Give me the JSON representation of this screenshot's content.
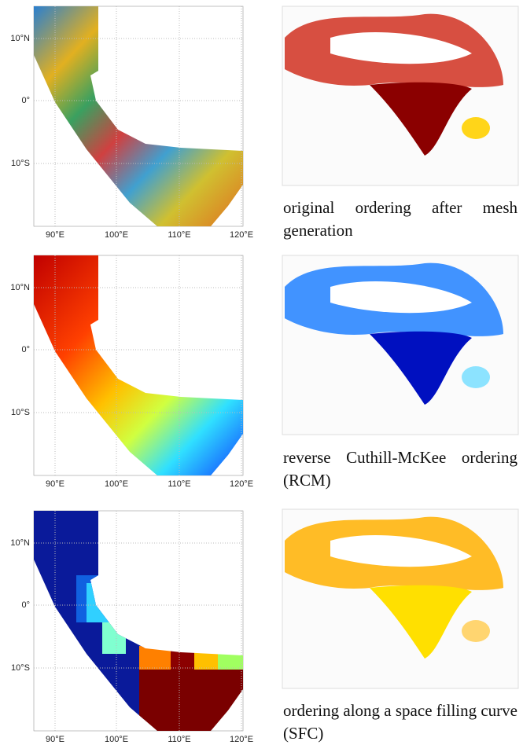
{
  "panels": [
    {
      "y_labels": [
        "10°N",
        "0°",
        "10°S"
      ],
      "x_labels": [
        "90°E",
        "100°E",
        "110°E",
        "120°E"
      ],
      "caption": "original ordering after mesh generation"
    },
    {
      "y_labels": [
        "10°N",
        "0°",
        "10°S"
      ],
      "x_labels": [
        "90°E",
        "100°E",
        "110°E",
        "120°E"
      ],
      "caption": "reverse Cuthill-McKee ordering (RCM)"
    },
    {
      "y_labels": [
        "10°N",
        "0°",
        "10°S"
      ],
      "x_labels": [
        "90°E",
        "100°E",
        "110°E",
        "120°E"
      ],
      "caption": "ordering along a space filling curve (SFC)"
    }
  ]
}
